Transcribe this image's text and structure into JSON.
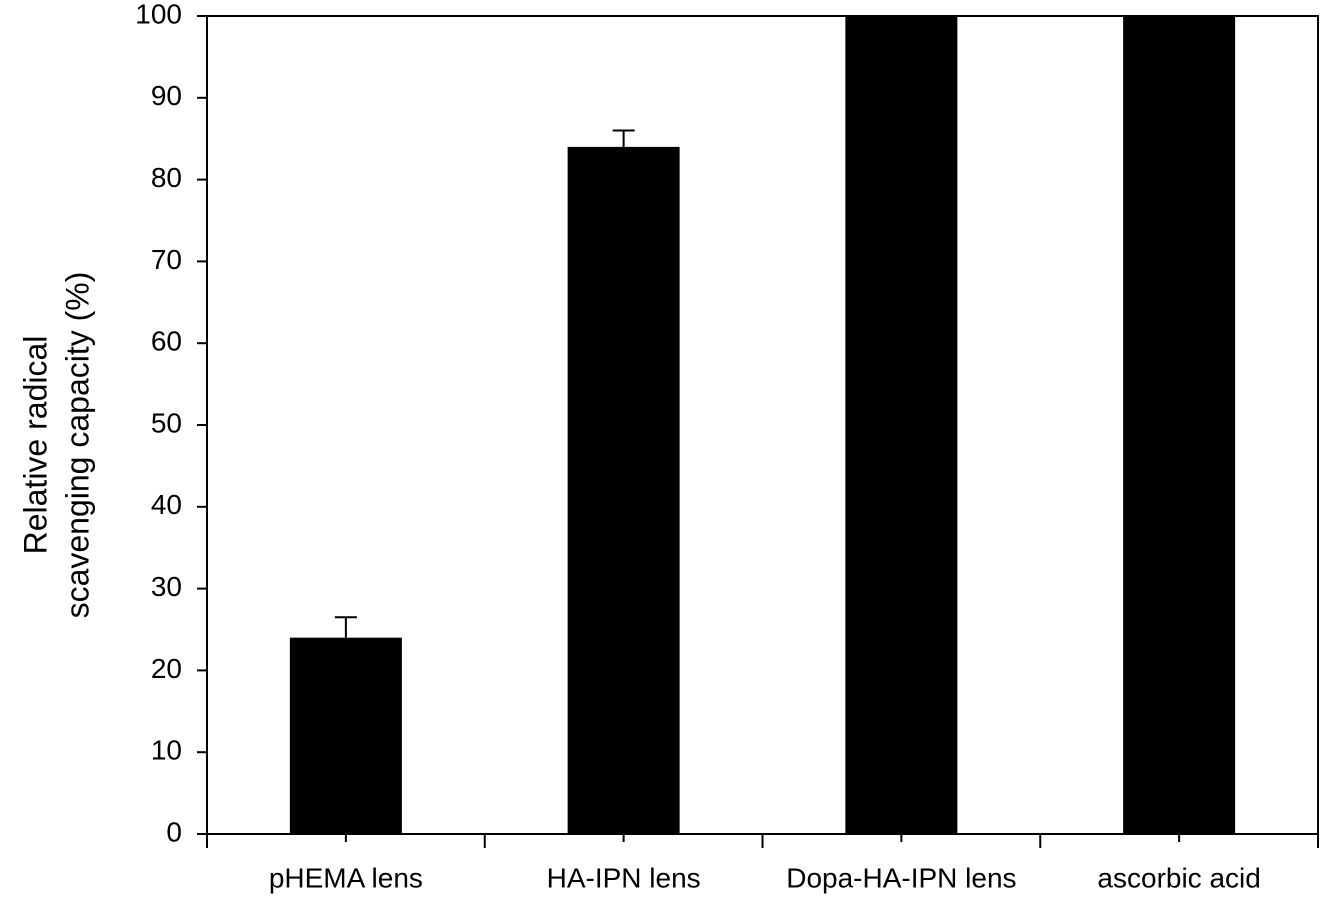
{
  "chart_data": {
    "type": "bar",
    "y_label_lines": [
      "Relative radical",
      "scavenging capacity (%)"
    ],
    "categories": [
      "pHEMA lens",
      "HA-IPN lens",
      "Dopa-HA-IPN lens",
      "ascorbic acid"
    ],
    "values": [
      24,
      84,
      100,
      100
    ],
    "errors": [
      2.5,
      2,
      null,
      null
    ],
    "color": "#000000",
    "ylim": [
      0,
      100
    ],
    "yticks": [
      0,
      10,
      20,
      30,
      40,
      50,
      60,
      70,
      80,
      90,
      100
    ],
    "grid": false
  }
}
